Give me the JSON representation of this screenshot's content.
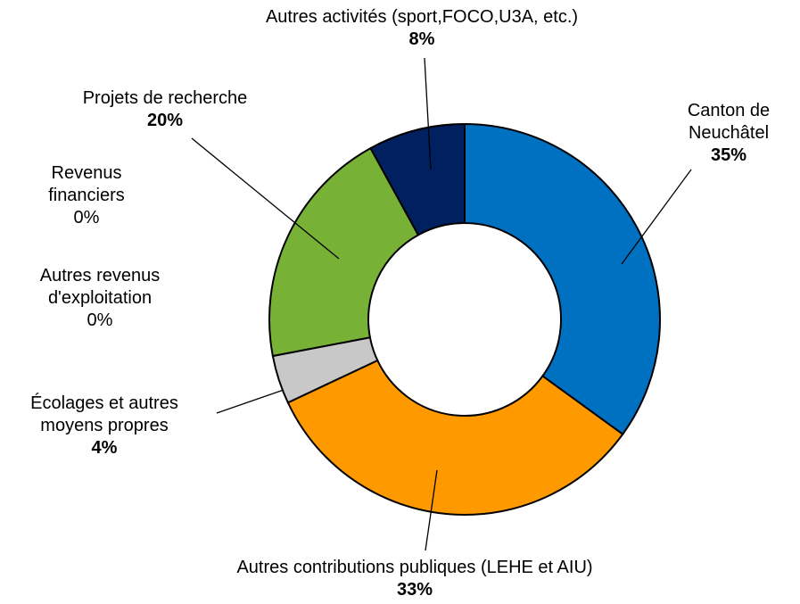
{
  "chart_data": {
    "type": "donut",
    "categories": [
      "Canton de Neuchâtel",
      "Autres contributions publiques (LEHE et AIU)",
      "Écolages et autres moyens propres",
      "Autres revenus d'exploitation",
      "Revenus financiers",
      "Projets de recherche",
      "Autres activités (sport,FOCO,U3A, etc.)"
    ],
    "values": [
      35,
      33,
      4,
      0,
      0,
      20,
      8
    ],
    "value_labels": [
      "35%",
      "33%",
      "4%",
      "0%",
      "0%",
      "20%",
      "8%"
    ],
    "colors": [
      "#0070c0",
      "#ff9900",
      "#c8c8c8",
      "#a5a5a5",
      "#5b9bd5",
      "#77b135",
      "#002060"
    ]
  }
}
